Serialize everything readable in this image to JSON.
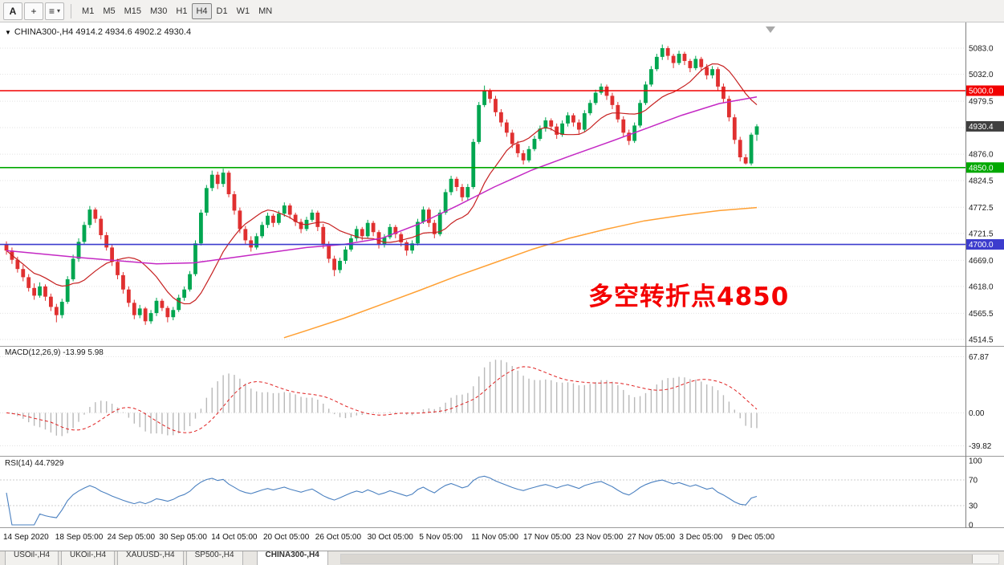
{
  "toolbar": {
    "tool_buttons": {
      "label_tool": "A",
      "crosshair_tool": "+",
      "tools_icon": "≡",
      "caret": "▾"
    },
    "timeframes": [
      "M1",
      "M5",
      "M15",
      "M30",
      "H1",
      "H4",
      "D1",
      "W1",
      "MN"
    ],
    "active_timeframe": "H4"
  },
  "chart": {
    "symbol_marker": "▼",
    "title": "CHINA300-,H4  4914.2 4934.6 4902.2 4930.4",
    "annotation": {
      "text": "多空转折点4850",
      "color": "#f40000"
    },
    "price_axis": {
      "labels": [
        "5083.0",
        "5032.0",
        "4979.5",
        "4928.0",
        "4876.0",
        "4824.5",
        "4772.5",
        "4721.5",
        "4669.0",
        "4618.0",
        "4565.5",
        "4514.5"
      ]
    },
    "current_price_tag": {
      "price": 4930.4,
      "label": "4930.4",
      "color": "#3f3f3f"
    }
  },
  "chart_data": {
    "type": "candlestick",
    "symbol": "CHINA300",
    "timeframe": "H4",
    "last_ohlc": {
      "open": 4914.2,
      "high": 4934.6,
      "low": 4902.2,
      "close": 4930.4
    },
    "price_range": [
      4514.5,
      5083.0
    ],
    "colors": {
      "up": "#00a650",
      "down": "#e03030",
      "grid": "#e2e2e2"
    },
    "candles": [
      [
        4700,
        4706,
        4680,
        4688
      ],
      [
        4688,
        4694,
        4662,
        4670
      ],
      [
        4670,
        4676,
        4645,
        4652
      ],
      [
        4652,
        4660,
        4628,
        4636
      ],
      [
        4636,
        4642,
        4608,
        4615
      ],
      [
        4615,
        4624,
        4592,
        4600
      ],
      [
        4600,
        4626,
        4596,
        4618
      ],
      [
        4618,
        4622,
        4590,
        4598
      ],
      [
        4598,
        4604,
        4570,
        4578
      ],
      [
        4578,
        4584,
        4548,
        4562
      ],
      [
        4562,
        4594,
        4556,
        4588
      ],
      [
        4588,
        4638,
        4584,
        4632
      ],
      [
        4632,
        4680,
        4628,
        4672
      ],
      [
        4672,
        4712,
        4666,
        4705
      ],
      [
        4705,
        4744,
        4700,
        4738
      ],
      [
        4738,
        4775,
        4732,
        4768
      ],
      [
        4768,
        4772,
        4742,
        4750
      ],
      [
        4750,
        4756,
        4710,
        4718
      ],
      [
        4718,
        4724,
        4688,
        4694
      ],
      [
        4694,
        4700,
        4658,
        4666
      ],
      [
        4666,
        4672,
        4632,
        4640
      ],
      [
        4640,
        4646,
        4604,
        4612
      ],
      [
        4612,
        4618,
        4578,
        4586
      ],
      [
        4586,
        4592,
        4554,
        4562
      ],
      [
        4562,
        4582,
        4556,
        4575
      ],
      [
        4575,
        4578,
        4543,
        4550
      ],
      [
        4550,
        4572,
        4545,
        4566
      ],
      [
        4566,
        4596,
        4560,
        4590
      ],
      [
        4590,
        4594,
        4570,
        4576
      ],
      [
        4576,
        4580,
        4548,
        4558
      ],
      [
        4558,
        4578,
        4552,
        4572
      ],
      [
        4572,
        4602,
        4568,
        4596
      ],
      [
        4596,
        4618,
        4590,
        4612
      ],
      [
        4612,
        4648,
        4608,
        4642
      ],
      [
        4642,
        4708,
        4638,
        4702
      ],
      [
        4702,
        4768,
        4698,
        4762
      ],
      [
        4762,
        4816,
        4756,
        4810
      ],
      [
        4810,
        4844,
        4804,
        4836
      ],
      [
        4836,
        4842,
        4808,
        4818
      ],
      [
        4818,
        4848,
        4812,
        4840
      ],
      [
        4840,
        4844,
        4792,
        4798
      ],
      [
        4798,
        4804,
        4758,
        4766
      ],
      [
        4766,
        4772,
        4722,
        4730
      ],
      [
        4730,
        4736,
        4700,
        4708
      ],
      [
        4708,
        4716,
        4686,
        4694
      ],
      [
        4694,
        4722,
        4690,
        4716
      ],
      [
        4716,
        4744,
        4712,
        4738
      ],
      [
        4738,
        4762,
        4732,
        4756
      ],
      [
        4756,
        4760,
        4734,
        4742
      ],
      [
        4742,
        4766,
        4738,
        4760
      ],
      [
        4760,
        4782,
        4754,
        4776
      ],
      [
        4776,
        4780,
        4750,
        4758
      ],
      [
        4758,
        4762,
        4736,
        4744
      ],
      [
        4744,
        4750,
        4722,
        4730
      ],
      [
        4730,
        4754,
        4726,
        4748
      ],
      [
        4748,
        4768,
        4744,
        4762
      ],
      [
        4762,
        4766,
        4726,
        4734
      ],
      [
        4734,
        4740,
        4692,
        4700
      ],
      [
        4700,
        4706,
        4664,
        4672
      ],
      [
        4672,
        4678,
        4638,
        4650
      ],
      [
        4650,
        4674,
        4644,
        4668
      ],
      [
        4668,
        4696,
        4662,
        4690
      ],
      [
        4690,
        4718,
        4686,
        4712
      ],
      [
        4712,
        4736,
        4706,
        4730
      ],
      [
        4730,
        4734,
        4708,
        4716
      ],
      [
        4716,
        4748,
        4712,
        4742
      ],
      [
        4742,
        4746,
        4716,
        4724
      ],
      [
        4724,
        4728,
        4692,
        4700
      ],
      [
        4700,
        4720,
        4694,
        4714
      ],
      [
        4714,
        4740,
        4710,
        4734
      ],
      [
        4734,
        4738,
        4712,
        4720
      ],
      [
        4720,
        4724,
        4696,
        4704
      ],
      [
        4704,
        4708,
        4678,
        4688
      ],
      [
        4688,
        4708,
        4682,
        4702
      ],
      [
        4702,
        4750,
        4698,
        4744
      ],
      [
        4744,
        4774,
        4740,
        4768
      ],
      [
        4768,
        4772,
        4734,
        4742
      ],
      [
        4742,
        4748,
        4712,
        4720
      ],
      [
        4720,
        4768,
        4716,
        4762
      ],
      [
        4762,
        4808,
        4758,
        4802
      ],
      [
        4802,
        4834,
        4796,
        4828
      ],
      [
        4828,
        4832,
        4804,
        4812
      ],
      [
        4812,
        4818,
        4784,
        4792
      ],
      [
        4792,
        4818,
        4786,
        4812
      ],
      [
        4812,
        4906,
        4808,
        4900
      ],
      [
        4900,
        4978,
        4896,
        4972
      ],
      [
        4972,
        5010,
        4968,
        5000
      ],
      [
        5000,
        5004,
        4976,
        4984
      ],
      [
        4984,
        4990,
        4950,
        4958
      ],
      [
        4958,
        4964,
        4930,
        4938
      ],
      [
        4938,
        4944,
        4910,
        4918
      ],
      [
        4918,
        4924,
        4888,
        4896
      ],
      [
        4896,
        4902,
        4870,
        4878
      ],
      [
        4878,
        4884,
        4856,
        4864
      ],
      [
        4864,
        4892,
        4860,
        4886
      ],
      [
        4886,
        4912,
        4882,
        4906
      ],
      [
        4906,
        4932,
        4902,
        4926
      ],
      [
        4926,
        4948,
        4920,
        4942
      ],
      [
        4942,
        4946,
        4922,
        4930
      ],
      [
        4930,
        4936,
        4906,
        4914
      ],
      [
        4914,
        4942,
        4910,
        4936
      ],
      [
        4936,
        4958,
        4930,
        4952
      ],
      [
        4952,
        4956,
        4930,
        4938
      ],
      [
        4938,
        4944,
        4916,
        4924
      ],
      [
        4924,
        4962,
        4920,
        4956
      ],
      [
        4956,
        4982,
        4952,
        4976
      ],
      [
        4976,
        5002,
        4972,
        4996
      ],
      [
        4996,
        5014,
        4992,
        5008
      ],
      [
        5008,
        5012,
        4982,
        4990
      ],
      [
        4990,
        4996,
        4964,
        4972
      ],
      [
        4972,
        4978,
        4938,
        4944
      ],
      [
        4944,
        4950,
        4910,
        4918
      ],
      [
        4918,
        4924,
        4894,
        4902
      ],
      [
        4902,
        4938,
        4898,
        4932
      ],
      [
        4932,
        4982,
        4928,
        4976
      ],
      [
        4976,
        5018,
        4972,
        5012
      ],
      [
        5012,
        5048,
        5008,
        5042
      ],
      [
        5042,
        5072,
        5038,
        5066
      ],
      [
        5066,
        5090,
        5060,
        5083
      ],
      [
        5083,
        5087,
        5060,
        5068
      ],
      [
        5068,
        5072,
        5044,
        5054
      ],
      [
        5054,
        5078,
        5050,
        5072
      ],
      [
        5072,
        5076,
        5050,
        5058
      ],
      [
        5058,
        5062,
        5036,
        5044
      ],
      [
        5044,
        5068,
        5040,
        5062
      ],
      [
        5062,
        5066,
        5038,
        5046
      ],
      [
        5046,
        5052,
        5022,
        5030
      ],
      [
        5030,
        5048,
        5024,
        5042
      ],
      [
        5042,
        5046,
        5000,
        5008
      ],
      [
        5008,
        5014,
        4976,
        4984
      ],
      [
        4984,
        4990,
        4940,
        4948
      ],
      [
        4948,
        4954,
        4896,
        4904
      ],
      [
        4904,
        4910,
        4862,
        4870
      ],
      [
        4870,
        4876,
        4856,
        4858
      ],
      [
        4858,
        4918,
        4854,
        4914.2
      ],
      [
        4914.2,
        4934.6,
        4902.2,
        4930.4
      ]
    ],
    "moving_averages": {
      "fast": {
        "period": 13,
        "color": "#c62020"
      },
      "mid": {
        "color": "#c428c4",
        "points": [
          [
            0,
            4688
          ],
          [
            0.1,
            4674
          ],
          [
            0.2,
            4662
          ],
          [
            0.25,
            4664
          ],
          [
            0.3,
            4674
          ],
          [
            0.35,
            4684
          ],
          [
            0.4,
            4694
          ],
          [
            0.45,
            4700
          ],
          [
            0.5,
            4712
          ],
          [
            0.55,
            4740
          ],
          [
            0.6,
            4775
          ],
          [
            0.65,
            4812
          ],
          [
            0.7,
            4845
          ],
          [
            0.75,
            4872
          ],
          [
            0.8,
            4898
          ],
          [
            0.85,
            4925
          ],
          [
            0.9,
            4952
          ],
          [
            0.95,
            4975
          ],
          [
            1,
            4988
          ]
        ]
      },
      "slow": {
        "color": "#ffa033",
        "points": [
          [
            0.37,
            4518
          ],
          [
            0.4,
            4532
          ],
          [
            0.45,
            4556
          ],
          [
            0.5,
            4583
          ],
          [
            0.55,
            4610
          ],
          [
            0.6,
            4638
          ],
          [
            0.65,
            4664
          ],
          [
            0.7,
            4690
          ],
          [
            0.75,
            4712
          ],
          [
            0.8,
            4730
          ],
          [
            0.85,
            4746
          ],
          [
            0.9,
            4757
          ],
          [
            0.95,
            4766
          ],
          [
            1,
            4772
          ]
        ]
      }
    },
    "hlines": [
      {
        "price": 5000.0,
        "label": "5000.0",
        "color": "#f20000"
      },
      {
        "price": 4850.0,
        "label": "4850.0",
        "color": "#00a800"
      },
      {
        "price": 4700.0,
        "label": "4700.0",
        "color": "#3c3ccd"
      }
    ],
    "indicators": {
      "macd": {
        "label": "MACD(12,26,9) -13.99 5.98",
        "fast": 12,
        "slow": 26,
        "signal": 9,
        "value": -13.99,
        "signal_value": 5.98,
        "axis_labels": [
          "67.87",
          "0.00",
          "-39.82"
        ],
        "histogram_color": "#b9b9b9",
        "signal_color": "#e02020"
      },
      "rsi": {
        "label": "RSI(14) 44.7929",
        "period": 14,
        "value": 44.7929,
        "axis_labels": [
          "100",
          "70",
          "30",
          "0"
        ],
        "levels": [
          70,
          30
        ],
        "color": "#4a80c0"
      }
    }
  },
  "time_axis": {
    "labels": [
      "14 Sep 2020",
      "18 Sep 05:00",
      "24 Sep 05:00",
      "30 Sep 05:00",
      "14 Oct 05:00",
      "20 Oct 05:00",
      "26 Oct 05:00",
      "30 Oct 05:00",
      "5 Nov 05:00",
      "11 Nov 05:00",
      "17 Nov 05:00",
      "23 Nov 05:00",
      "27 Nov 05:00",
      "3 Dec 05:00",
      "9 Dec 05:00"
    ]
  },
  "tabbar": {
    "tabs": [
      "USOil-,H4",
      "UKOil-,H4",
      "XAUUSD-,H4",
      "SP500-,H4",
      "CHINA300-,H4"
    ],
    "active": "CHINA300-,H4"
  }
}
